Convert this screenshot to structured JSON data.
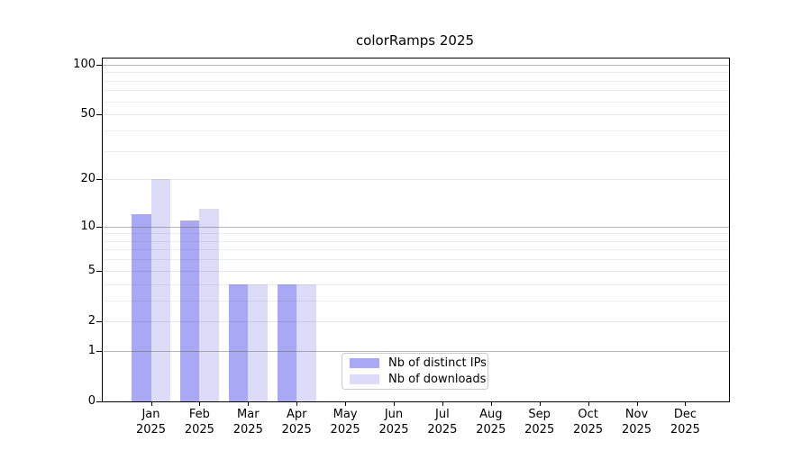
{
  "figure": {
    "title": "colorRamps 2025"
  },
  "chart_data": {
    "type": "bar",
    "title": "colorRamps 2025",
    "year_label": "2025",
    "categories": [
      "Jan",
      "Feb",
      "Mar",
      "Apr",
      "May",
      "Jun",
      "Jul",
      "Aug",
      "Sep",
      "Oct",
      "Nov",
      "Dec"
    ],
    "series": [
      {
        "name": "Nb of distinct IPs",
        "color": "#a8a8f4",
        "values": [
          12,
          11,
          4,
          4,
          0,
          0,
          0,
          0,
          0,
          0,
          0,
          0
        ]
      },
      {
        "name": "Nb of downloads",
        "color": "#dcdcf8",
        "values": [
          20,
          13,
          4,
          4,
          0,
          0,
          0,
          0,
          0,
          0,
          0,
          0
        ]
      }
    ],
    "xlabel": "",
    "ylabel": "",
    "y_axis": {
      "scale": "log1p",
      "min": 0,
      "max": 109,
      "tick_values": [
        0,
        1,
        2,
        5,
        10,
        20,
        50,
        100
      ],
      "tick_labels": [
        "0",
        "1",
        "2",
        "5",
        "10",
        "20",
        "50",
        "100"
      ],
      "major_gridline_values": [
        1,
        10,
        100
      ],
      "minor_gridline_values": [
        2,
        5,
        20,
        50
      ],
      "subminor_gridline_values": [
        3,
        4,
        6,
        7,
        8,
        9,
        30,
        40,
        60,
        70,
        80,
        90
      ]
    },
    "grid": true,
    "legend": {
      "position": "lower-center",
      "items": [
        "Nb of distinct IPs",
        "Nb of downloads"
      ]
    }
  }
}
